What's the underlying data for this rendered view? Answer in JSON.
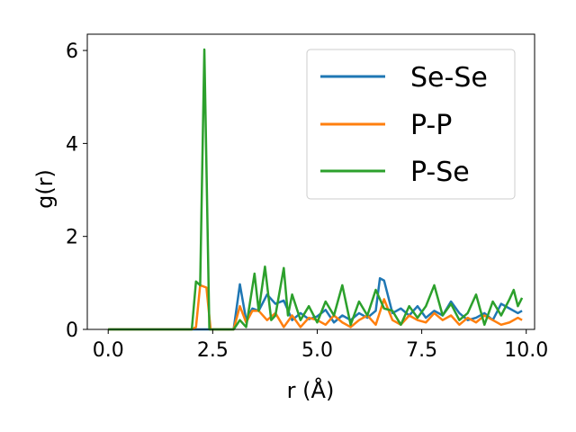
{
  "chart_data": {
    "type": "line",
    "title": "",
    "xlabel": "r (Å)",
    "ylabel": "g(r)",
    "xlim": [
      -0.5,
      10.2
    ],
    "ylim": [
      0,
      6.35
    ],
    "xticks": [
      0.0,
      2.5,
      5.0,
      7.5,
      10.0
    ],
    "xtick_labels": [
      "0.0",
      "2.5",
      "5.0",
      "7.5",
      "10.0"
    ],
    "yticks": [
      0,
      2,
      4,
      6
    ],
    "ytick_labels": [
      "0",
      "2",
      "4",
      "6"
    ],
    "grid": false,
    "legend_position": "top-right",
    "series": [
      {
        "name": "Se-Se",
        "color": "#1f77b4",
        "x": [
          0,
          2.0,
          3.0,
          3.15,
          3.3,
          3.45,
          3.6,
          3.8,
          4.0,
          4.2,
          4.4,
          4.6,
          4.8,
          5.0,
          5.2,
          5.4,
          5.6,
          5.8,
          6.0,
          6.2,
          6.4,
          6.5,
          6.6,
          6.8,
          7.0,
          7.2,
          7.4,
          7.6,
          7.8,
          8.0,
          8.2,
          8.4,
          8.6,
          8.8,
          9.0,
          9.2,
          9.4,
          9.6,
          9.8,
          9.9
        ],
        "y": [
          0,
          0,
          0,
          0.97,
          0.2,
          0.45,
          0.4,
          0.75,
          0.55,
          0.62,
          0.2,
          0.35,
          0.22,
          0.28,
          0.42,
          0.15,
          0.3,
          0.2,
          0.35,
          0.25,
          0.4,
          1.1,
          1.05,
          0.35,
          0.45,
          0.3,
          0.5,
          0.25,
          0.4,
          0.3,
          0.6,
          0.35,
          0.2,
          0.25,
          0.35,
          0.2,
          0.55,
          0.45,
          0.35,
          0.4
        ]
      },
      {
        "name": "P-P",
        "color": "#ff7f0e",
        "x": [
          0,
          2.0,
          2.1,
          2.2,
          2.35,
          2.45,
          2.6,
          3.0,
          3.15,
          3.3,
          3.45,
          3.6,
          3.8,
          4.0,
          4.2,
          4.4,
          4.6,
          4.8,
          5.0,
          5.2,
          5.4,
          5.6,
          5.8,
          6.0,
          6.2,
          6.4,
          6.6,
          6.8,
          7.0,
          7.2,
          7.4,
          7.6,
          7.8,
          8.0,
          8.2,
          8.4,
          8.6,
          8.8,
          9.0,
          9.2,
          9.4,
          9.6,
          9.8,
          9.9
        ],
        "y": [
          0,
          0,
          0.05,
          0.95,
          0.9,
          0,
          0,
          0,
          0.5,
          0.15,
          0.4,
          0.4,
          0.2,
          0.35,
          0.05,
          0.3,
          0.05,
          0.25,
          0.2,
          0.1,
          0.3,
          0.15,
          0.05,
          0.2,
          0.3,
          0.1,
          0.65,
          0.2,
          0.1,
          0.3,
          0.2,
          0.15,
          0.35,
          0.2,
          0.3,
          0.1,
          0.25,
          0.15,
          0.3,
          0.2,
          0.1,
          0.15,
          0.25,
          0.2
        ]
      },
      {
        "name": "P-Se",
        "color": "#2ca02c",
        "x": [
          0,
          1.9,
          2.0,
          2.1,
          2.2,
          2.3,
          2.42,
          2.5,
          3.0,
          3.15,
          3.3,
          3.5,
          3.6,
          3.75,
          3.9,
          4.0,
          4.2,
          4.3,
          4.4,
          4.6,
          4.8,
          5.0,
          5.2,
          5.4,
          5.6,
          5.8,
          6.0,
          6.2,
          6.4,
          6.6,
          6.8,
          7.0,
          7.2,
          7.4,
          7.6,
          7.8,
          8.0,
          8.2,
          8.4,
          8.6,
          8.8,
          9.0,
          9.2,
          9.4,
          9.6,
          9.7,
          9.8,
          9.9
        ],
        "y": [
          0,
          0,
          0,
          1.03,
          0.95,
          6.02,
          0,
          0,
          0,
          0.2,
          0.05,
          1.2,
          0.4,
          1.35,
          0.2,
          0.3,
          1.32,
          0.3,
          0.75,
          0.2,
          0.5,
          0.15,
          0.6,
          0.3,
          0.95,
          0.1,
          0.6,
          0.3,
          0.85,
          0.45,
          0.4,
          0.1,
          0.5,
          0.25,
          0.5,
          0.95,
          0.3,
          0.55,
          0.2,
          0.35,
          0.75,
          0.1,
          0.6,
          0.3,
          0.65,
          0.85,
          0.5,
          0.68
        ]
      }
    ]
  }
}
